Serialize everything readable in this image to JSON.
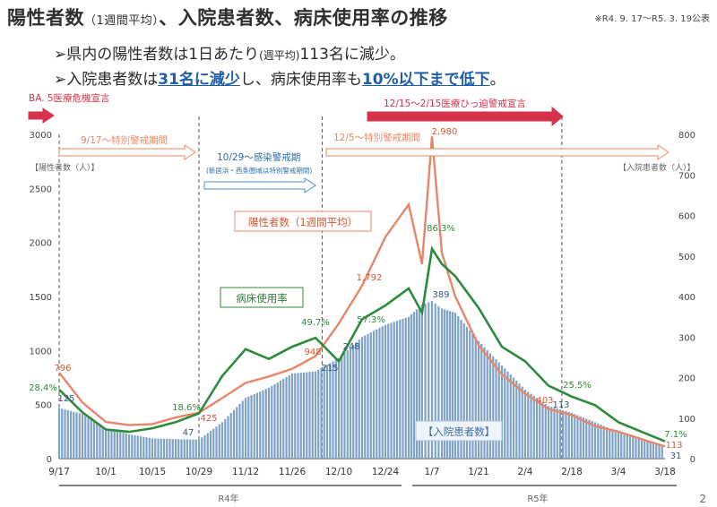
{
  "header": {
    "title_main": "陽性者数",
    "title_paren": "（1週間平均）",
    "title_rest": "、入院患者数、病床使用率の推移",
    "period": "※R4. 9. 17～R5. 3. 19公表"
  },
  "bullets": [
    {
      "prefix": "➢県内の陽性者数は1日あたり",
      "paren": "(週平均)",
      "suffix": "113名に減少。"
    },
    {
      "prefix": "➢入院患者数は",
      "hl1": "31名に減少",
      "mid": "し、病床使用率も",
      "hl2": "10%以下まで低下",
      "suffix": "。"
    }
  ],
  "colors": {
    "positives": "#e8866a",
    "occupancy": "#2e8b3a",
    "inpatients": "#7ea2c6",
    "alert_red": "#d7324b",
    "special_orange": "#e88a62",
    "infection_blue": "#4a8fc8"
  },
  "chart_data": {
    "type": "line",
    "x_tick_labels": [
      "9/17",
      "10/1",
      "10/15",
      "10/29",
      "11/12",
      "11/26",
      "12/10",
      "12/24",
      "1/7",
      "1/21",
      "2/4",
      "2/18",
      "3/4",
      "3/18"
    ],
    "year_labels": [
      "R4年",
      "R5年"
    ],
    "left_axis": {
      "label": "【陽性者数（人）】",
      "ylim": [
        0,
        3000
      ],
      "ticks": [
        0,
        500,
        1000,
        1500,
        2000,
        2500,
        3000
      ]
    },
    "right_axis": {
      "label": "【入院患者数（人）】",
      "ylim": [
        0,
        800
      ],
      "ticks": [
        0,
        100,
        200,
        300,
        400,
        500,
        600,
        700,
        800
      ]
    },
    "series": [
      {
        "name": "陽性者数（1週間平均）",
        "axis": "left",
        "kind": "line",
        "x": [
          "9/17",
          "9/24",
          "10/1",
          "10/8",
          "10/15",
          "10/22",
          "10/29",
          "11/5",
          "11/12",
          "11/19",
          "11/26",
          "12/3",
          "12/10",
          "12/17",
          "12/24",
          "12/31",
          "1/4",
          "1/7",
          "1/10",
          "1/14",
          "1/21",
          "1/28",
          "2/4",
          "2/11",
          "2/18",
          "2/25",
          "3/4",
          "3/11",
          "3/18"
        ],
        "values": [
          796,
          520,
          340,
          310,
          320,
          380,
          425,
          560,
          700,
          760,
          830,
          948,
          1250,
          1600,
          2050,
          2350,
          1800,
          2980,
          1900,
          1500,
          1050,
          780,
          600,
          460,
          403,
          300,
          250,
          180,
          113
        ]
      },
      {
        "name": "病床使用率",
        "axis": "right",
        "kind": "line",
        "x": [
          "9/17",
          "9/24",
          "10/1",
          "10/8",
          "10/15",
          "10/22",
          "10/29",
          "11/5",
          "11/12",
          "11/19",
          "11/26",
          "12/3",
          "12/10",
          "12/17",
          "12/24",
          "12/31",
          "1/4",
          "1/7",
          "1/10",
          "1/14",
          "1/21",
          "1/28",
          "2/4",
          "2/11",
          "2/18",
          "2/25",
          "3/4",
          "3/11",
          "3/18"
        ],
        "values": [
          28.4,
          19,
          12,
          11,
          12.5,
          15,
          18.6,
          34,
          45,
          41,
          46,
          49.7,
          40,
          57.3,
          63,
          70,
          60,
          86.3,
          80,
          75,
          62,
          46,
          40,
          30,
          25.5,
          22,
          15,
          11,
          7.1
        ]
      },
      {
        "name": "入院患者数",
        "axis": "right",
        "kind": "bar",
        "x": [
          "9/17",
          "9/24",
          "10/1",
          "10/8",
          "10/15",
          "10/22",
          "10/29",
          "11/5",
          "11/12",
          "11/19",
          "11/26",
          "12/3",
          "12/10",
          "12/17",
          "12/24",
          "12/31",
          "1/4",
          "1/7",
          "1/10",
          "1/14",
          "1/21",
          "1/28",
          "2/4",
          "2/11",
          "2/18",
          "2/25",
          "3/4",
          "3/11",
          "3/18"
        ],
        "values": [
          125,
          110,
          75,
          60,
          50,
          48,
          47,
          90,
          150,
          175,
          210,
          215,
          248,
          300,
          330,
          350,
          380,
          389,
          370,
          360,
          290,
          230,
          170,
          130,
          113,
          90,
          65,
          45,
          31
        ]
      }
    ],
    "labels": {
      "positives": "陽性者数（1週間平均）",
      "occupancy": "病床使用率",
      "inpatients": "【入院患者数】"
    },
    "annotations": {
      "positives_values": [
        "796",
        "425",
        "948",
        "1,792",
        "2,980",
        "403",
        "113"
      ],
      "occupancy_values": [
        "28.4%",
        "18.6%",
        "49.7%",
        "57.3%",
        "86.3%",
        "25.5%",
        "7.1%"
      ],
      "inpatient_values": [
        "125",
        "47",
        "215",
        "248",
        "389",
        "113",
        "31"
      ]
    },
    "periods": [
      {
        "text": "BA. 5医療危機宣言"
      },
      {
        "text": "9/17～特別警戒期間"
      },
      {
        "text": "10/29～感染警戒期"
      },
      {
        "text": "(新居浜・西条圏域は特別警戒期間)"
      },
      {
        "text": "12/5～特別警戒期間"
      },
      {
        "text": "12/15～2/15医療ひっ迫警戒宣言"
      }
    ],
    "grid": false
  },
  "page_number": "2"
}
